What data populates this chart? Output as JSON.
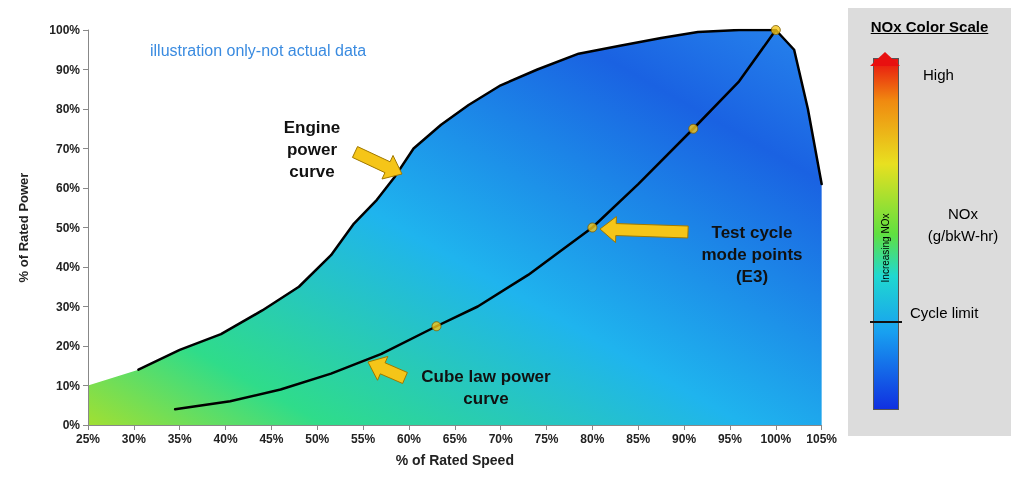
{
  "chart_data": {
    "type": "line",
    "xlabel": "% of Rated Speed",
    "ylabel": "% of Rated Power",
    "legend_title": "NOx Color Scale",
    "clabel": "NOx\n(g/bkW-hr)",
    "xlim": [
      25,
      105
    ],
    "ylim": [
      0,
      100
    ],
    "xticks": [
      {
        "value": 25,
        "label": "25%"
      },
      {
        "value": 30,
        "label": "30%"
      },
      {
        "value": 35,
        "label": "35%"
      },
      {
        "value": 40,
        "label": "40%"
      },
      {
        "value": 45,
        "label": "45%"
      },
      {
        "value": 50,
        "label": "50%"
      },
      {
        "value": 55,
        "label": "55%"
      },
      {
        "value": 60,
        "label": "60%"
      },
      {
        "value": 65,
        "label": "65%"
      },
      {
        "value": 70,
        "label": "70%"
      },
      {
        "value": 75,
        "label": "75%"
      },
      {
        "value": 80,
        "label": "80%"
      },
      {
        "value": 85,
        "label": "85%"
      },
      {
        "value": 90,
        "label": "90%"
      },
      {
        "value": 95,
        "label": "95%"
      },
      {
        "value": 100,
        "label": "100%"
      },
      {
        "value": 105,
        "label": "105%"
      }
    ],
    "yticks": [
      {
        "value": 0,
        "label": "0%"
      },
      {
        "value": 10,
        "label": "10%"
      },
      {
        "value": 20,
        "label": "20%"
      },
      {
        "value": 30,
        "label": "30%"
      },
      {
        "value": 40,
        "label": "40%"
      },
      {
        "value": 50,
        "label": "50%"
      },
      {
        "value": 60,
        "label": "60%"
      },
      {
        "value": 70,
        "label": "70%"
      },
      {
        "value": 80,
        "label": "80%"
      },
      {
        "value": 90,
        "label": "90%"
      },
      {
        "value": 100,
        "label": "100%"
      }
    ],
    "grid": false,
    "line_style": "solid",
    "series": [
      {
        "marker": "none",
        "color": "#000000",
        "x": [
          30.5,
          35,
          39.5,
          44,
          48,
          51.5,
          54,
          56.5,
          58.5,
          60.5,
          63.5,
          66.5,
          70,
          74,
          78.5,
          83,
          87.5,
          91.5,
          96,
          100,
          102,
          103.5,
          105
        ],
        "values": [
          14,
          19,
          23,
          29,
          35,
          43,
          51,
          57,
          63,
          70,
          76,
          81,
          86,
          90,
          94,
          96,
          98,
          99.5,
          100,
          100,
          95,
          80,
          61
        ]
      },
      {
        "marker": "none",
        "color": "#000000",
        "x": [
          34.5,
          40.5,
          46,
          51.5,
          57,
          63,
          67.5,
          73,
          80,
          85,
          91,
          96,
          100
        ],
        "values": [
          4,
          6,
          9,
          13,
          18,
          25,
          30,
          38,
          50,
          61,
          75,
          87,
          100
        ]
      },
      {
        "type": "scatter",
        "marker": "circle",
        "color": "#f5c518",
        "x": [
          63,
          80,
          91,
          100
        ],
        "values": [
          25,
          50,
          75,
          100
        ]
      }
    ],
    "annotations": [
      "illustration only-not actual data",
      "Engine power curve",
      "Cube law power curve",
      "Test cycle mode points (E3)",
      "High",
      "Increasing NOx",
      "Cycle limit"
    ]
  }
}
